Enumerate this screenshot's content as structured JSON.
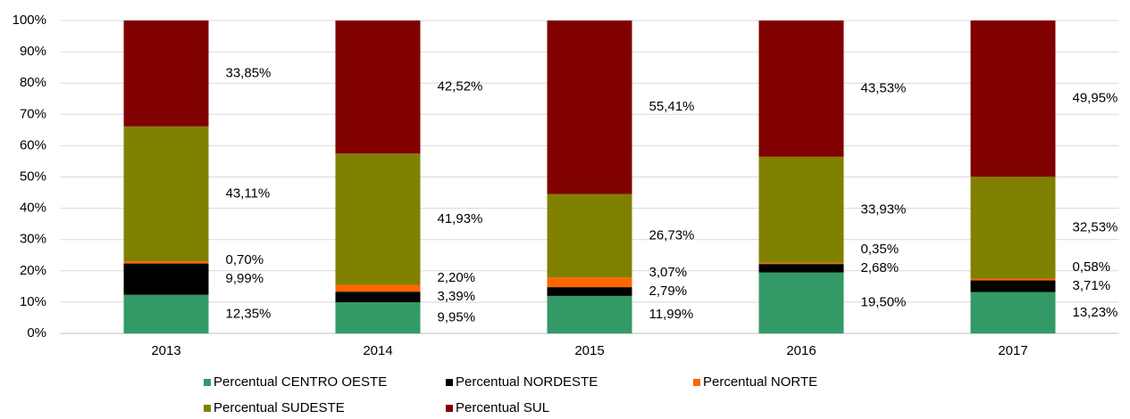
{
  "chart_data": {
    "type": "stacked_bar",
    "categories": [
      "2013",
      "2014",
      "2015",
      "2016",
      "2017"
    ],
    "series": [
      {
        "name": "Percentual CENTRO OESTE",
        "color": "#339966",
        "values": [
          12.35,
          9.95,
          11.99,
          19.5,
          13.23
        ],
        "value_labels": [
          "12,35%",
          "9,95%",
          "11,99%",
          "19,50%",
          "13,23%"
        ]
      },
      {
        "name": "Percentual NORDESTE",
        "color": "#000000",
        "values": [
          9.99,
          3.39,
          2.79,
          2.68,
          3.71
        ],
        "value_labels": [
          "9,99%",
          "3,39%",
          "2,79%",
          "2,68%",
          "3,71%"
        ]
      },
      {
        "name": "Percentual NORTE",
        "color": "#ff6600",
        "values": [
          0.7,
          2.2,
          3.07,
          0.35,
          0.58
        ],
        "value_labels": [
          "0,70%",
          "2,20%",
          "3,07%",
          "0,35%",
          "0,58%"
        ]
      },
      {
        "name": "Percentual SUDESTE",
        "color": "#808000",
        "values": [
          43.11,
          41.93,
          26.73,
          33.93,
          32.53
        ],
        "value_labels": [
          "43,11%",
          "41,93%",
          "26,73%",
          "33,93%",
          "32,53%"
        ]
      },
      {
        "name": "Percentual SUL",
        "color": "#800000",
        "values": [
          33.85,
          42.52,
          55.41,
          43.53,
          49.95
        ],
        "value_labels": [
          "33,85%",
          "42,52%",
          "55,41%",
          "43,53%",
          "49,95%"
        ]
      }
    ],
    "ylim": [
      0,
      100
    ],
    "yticks": [
      {
        "value": 0,
        "label": "0%"
      },
      {
        "value": 10,
        "label": "10%"
      },
      {
        "value": 20,
        "label": "20%"
      },
      {
        "value": 30,
        "label": "30%"
      },
      {
        "value": 40,
        "label": "40%"
      },
      {
        "value": 50,
        "label": "50%"
      },
      {
        "value": 60,
        "label": "60%"
      },
      {
        "value": 70,
        "label": "70%"
      },
      {
        "value": 80,
        "label": "80%"
      },
      {
        "value": 90,
        "label": "90%"
      },
      {
        "value": 100,
        "label": "100%"
      }
    ],
    "grid": true,
    "legend": "bottom"
  }
}
